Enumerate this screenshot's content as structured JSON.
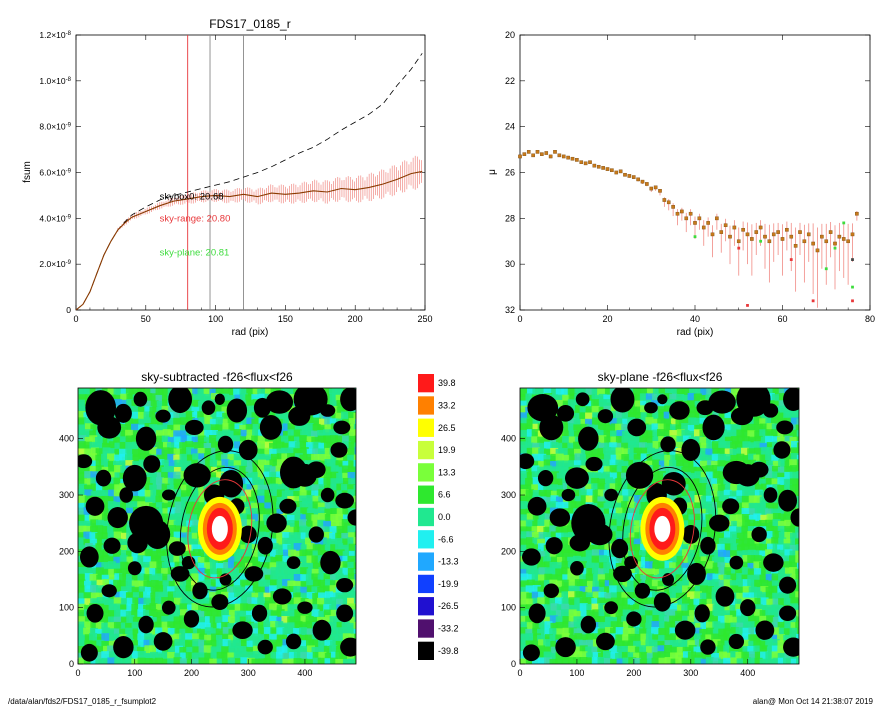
{
  "footer": {
    "path": "/data/alan/fds2/FDS17_0185_r_fsumplot2",
    "stamp": "alan@  Mon Oct 14 21:38:07 2019"
  },
  "colors": {
    "sky0": "#000000",
    "sky_range": "#e8373a",
    "sky_plane": "#3ddc3d",
    "profile_line": "#8a3a00",
    "errorbar": "#f08a84",
    "cb_band": "#f5a09a"
  },
  "chart_data": [
    {
      "id": "fsum",
      "type": "line",
      "title": "FDS17_0185_r",
      "xlabel": "rad (pix)",
      "ylabel": "fsum",
      "xlim": [
        0,
        250
      ],
      "ylim": [
        0,
        1.2e-08
      ],
      "xticks": [
        "0",
        "50",
        "100",
        "150",
        "200",
        "250"
      ],
      "yticks": [
        {
          "v": 0,
          "m": "0",
          "e": ""
        },
        {
          "v": 2e-09,
          "m": "2.0×10",
          "e": "-9"
        },
        {
          "v": 4e-09,
          "m": "4.0×10",
          "e": "-9"
        },
        {
          "v": 6e-09,
          "m": "6.0×10",
          "e": "-9"
        },
        {
          "v": 8e-09,
          "m": "8.0×10",
          "e": "-9"
        },
        {
          "v": 1e-08,
          "m": "1.0×10",
          "e": "-8"
        },
        {
          "v": 1.2e-08,
          "m": "1.2×10",
          "e": "-8"
        }
      ],
      "vlines": [
        {
          "x": 80,
          "color": "#e8373a"
        },
        {
          "x": 96,
          "color": "#888888"
        },
        {
          "x": 120,
          "color": "#888888"
        }
      ],
      "labels": [
        {
          "text": "skybox0: 20.68",
          "color": "#000000",
          "x": 47,
          "y": 4.95e-09
        },
        {
          "text": "sky-range: 20.80",
          "color": "#e8373a",
          "x": 47,
          "y": 4e-09
        },
        {
          "text": "sky-plane: 20.81",
          "color": "#3ddc3d",
          "x": 47,
          "y": 2.5e-09
        }
      ],
      "series": [
        {
          "name": "",
          "style": "dashed",
          "x": [
            0,
            5,
            10,
            15,
            20,
            25,
            30,
            35,
            40,
            50,
            60,
            70,
            80,
            90,
            100,
            110,
            120,
            130,
            140,
            150,
            160,
            170,
            180,
            190,
            200,
            210,
            220,
            230,
            240,
            248
          ],
          "y": [
            0,
            2.5e-10,
            8e-10,
            1.6e-09,
            2.4e-09,
            3e-09,
            3.5e-09,
            3.85e-09,
            4.15e-09,
            4.5e-09,
            4.8e-09,
            5e-09,
            5.15e-09,
            5.3e-09,
            5.45e-09,
            5.6e-09,
            5.8e-09,
            6e-09,
            6.25e-09,
            6.55e-09,
            6.85e-09,
            7.1e-09,
            7.45e-09,
            7.85e-09,
            8.2e-09,
            8.55e-09,
            9e-09,
            9.8e-09,
            1.05e-08,
            1.12e-08
          ]
        },
        {
          "name": "",
          "style": "solid",
          "x": [
            0,
            5,
            10,
            15,
            20,
            25,
            30,
            35,
            40,
            50,
            60,
            70,
            80,
            90,
            100,
            110,
            120,
            130,
            140,
            150,
            160,
            170,
            180,
            190,
            200,
            210,
            220,
            230,
            240,
            248
          ],
          "y": [
            0,
            2.5e-10,
            8e-10,
            1.6e-09,
            2.4e-09,
            3e-09,
            3.5e-09,
            3.8e-09,
            4.05e-09,
            4.3e-09,
            4.55e-09,
            4.75e-09,
            4.85e-09,
            4.95e-09,
            5e-09,
            4.95e-09,
            5.05e-09,
            4.95e-09,
            5.1e-09,
            5.05e-09,
            5.1e-09,
            5.2e-09,
            5.15e-09,
            5.3e-09,
            5.25e-09,
            5.35e-09,
            5.5e-09,
            5.7e-09,
            5.95e-09,
            6.05e-09
          ]
        }
      ],
      "err_band": [
        {
          "x": 40,
          "e": 1e-10
        },
        {
          "x": 60,
          "e": 1.2e-10
        },
        {
          "x": 80,
          "e": 1.8e-10
        },
        {
          "x": 100,
          "e": 2.2e-10
        },
        {
          "x": 120,
          "e": 2.5e-10
        },
        {
          "x": 140,
          "e": 3e-10
        },
        {
          "x": 160,
          "e": 3.5e-10
        },
        {
          "x": 180,
          "e": 4e-10
        },
        {
          "x": 200,
          "e": 4.5e-10
        },
        {
          "x": 220,
          "e": 5e-10
        },
        {
          "x": 240,
          "e": 5.5e-10
        },
        {
          "x": 248,
          "e": 6e-10
        }
      ]
    },
    {
      "id": "mu",
      "type": "scatter",
      "title": "",
      "xlabel": "rad (pix)",
      "ylabel": "μ",
      "xlim": [
        0,
        80
      ],
      "ylim": [
        32,
        20
      ],
      "xticks": [
        "0",
        "20",
        "40",
        "60",
        "80"
      ],
      "yticks": [
        "20",
        "22",
        "24",
        "26",
        "28",
        "30",
        "32"
      ],
      "x": [
        0,
        1,
        2,
        3,
        4,
        5,
        6,
        7,
        8,
        9,
        10,
        11,
        12,
        13,
        14,
        15,
        16,
        17,
        18,
        19,
        20,
        21,
        22,
        23,
        24,
        25,
        26,
        27,
        28,
        29,
        30,
        31,
        32,
        33,
        34,
        35,
        36,
        37,
        38,
        39,
        40,
        41,
        42,
        43,
        44,
        45,
        46,
        47,
        48,
        49,
        50,
        51,
        52,
        53,
        54,
        55,
        56,
        57,
        58,
        59,
        60,
        61,
        62,
        63,
        64,
        65,
        66,
        67,
        68,
        69,
        70,
        71,
        72,
        73,
        74,
        75,
        76,
        77
      ],
      "y": [
        25.3,
        25.2,
        25.1,
        25.25,
        25.1,
        25.2,
        25.15,
        25.3,
        25.1,
        25.25,
        25.3,
        25.35,
        25.4,
        25.45,
        25.55,
        25.6,
        25.55,
        25.7,
        25.75,
        25.8,
        25.85,
        25.9,
        26.0,
        25.95,
        26.1,
        26.15,
        26.2,
        26.3,
        26.4,
        26.5,
        26.7,
        26.65,
        26.8,
        27.2,
        27.3,
        27.5,
        27.8,
        27.7,
        28.0,
        27.8,
        28.2,
        28.0,
        28.4,
        28.2,
        28.7,
        28.0,
        28.6,
        28.3,
        28.8,
        28.4,
        29.0,
        28.5,
        28.7,
        28.9,
        28.6,
        28.4,
        28.8,
        29.0,
        28.7,
        28.6,
        28.9,
        28.5,
        28.8,
        29.2,
        28.6,
        29.0,
        28.7,
        29.1,
        29.4,
        28.8,
        29.0,
        28.6,
        29.1,
        28.8,
        28.9,
        29.0,
        28.7,
        27.8
      ],
      "err": [
        0.05,
        0.05,
        0.05,
        0.05,
        0.05,
        0.05,
        0.05,
        0.05,
        0.05,
        0.05,
        0.05,
        0.05,
        0.05,
        0.05,
        0.05,
        0.05,
        0.05,
        0.05,
        0.05,
        0.06,
        0.06,
        0.06,
        0.06,
        0.07,
        0.07,
        0.08,
        0.08,
        0.09,
        0.1,
        0.1,
        0.15,
        0.15,
        0.2,
        0.3,
        0.35,
        0.4,
        0.5,
        0.4,
        0.6,
        0.5,
        0.7,
        0.5,
        0.8,
        0.6,
        1.0,
        0.5,
        0.9,
        0.7,
        1.2,
        0.8,
        1.5,
        0.9,
        1.3,
        1.6,
        1.0,
        0.8,
        1.4,
        1.8,
        1.2,
        1.0,
        1.6,
        0.9,
        1.5,
        2.0,
        1.0,
        1.8,
        1.2,
        2.2,
        2.5,
        1.4,
        1.9,
        1.1,
        2.0,
        1.5,
        1.7,
        1.9,
        1.2,
        0.3
      ],
      "outliers": [
        {
          "x": 40,
          "y": 28.8,
          "c": "#3ddc3d"
        },
        {
          "x": 50,
          "y": 29.3,
          "c": "#e8373a"
        },
        {
          "x": 52,
          "y": 31.8,
          "c": "#e8373a"
        },
        {
          "x": 55,
          "y": 29.0,
          "c": "#3ddc3d"
        },
        {
          "x": 62,
          "y": 29.8,
          "c": "#e8373a"
        },
        {
          "x": 67,
          "y": 31.6,
          "c": "#e8373a"
        },
        {
          "x": 70,
          "y": 30.2,
          "c": "#3ddc3d"
        },
        {
          "x": 72,
          "y": 29.3,
          "c": "#3ddc3d"
        },
        {
          "x": 74,
          "y": 28.2,
          "c": "#3ddc3d"
        },
        {
          "x": 76,
          "y": 29.8,
          "c": "#444444"
        },
        {
          "x": 76,
          "y": 31.0,
          "c": "#3ddc3d"
        },
        {
          "x": 76,
          "y": 31.6,
          "c": "#e8373a"
        }
      ]
    },
    {
      "id": "img1",
      "type": "heatmap",
      "title": "sky-subtracted -f26<flux<f26",
      "xlim": [
        0,
        490
      ],
      "ylim": [
        0,
        490
      ],
      "xticks": [
        "0",
        "100",
        "200",
        "300",
        "400"
      ],
      "yticks": [
        "0",
        "100",
        "200",
        "300",
        "400"
      ],
      "galaxy_center": [
        250,
        240
      ],
      "ellipses": [
        {
          "rx": 68,
          "ry": 110,
          "color": "#000000"
        },
        {
          "rx": 92,
          "ry": 140,
          "color": "#000000"
        },
        {
          "rx": 55,
          "ry": 88,
          "color": "#e8373a"
        }
      ]
    },
    {
      "id": "img2",
      "type": "heatmap",
      "title": "sky-plane -f26<flux<f26",
      "xlim": [
        0,
        490
      ],
      "ylim": [
        0,
        490
      ],
      "xticks": [
        "0",
        "100",
        "200",
        "300",
        "400"
      ],
      "yticks": [
        "0",
        "100",
        "200",
        "300",
        "400"
      ],
      "galaxy_center": [
        250,
        240
      ],
      "ellipses": [
        {
          "rx": 68,
          "ry": 110,
          "color": "#000000"
        },
        {
          "rx": 92,
          "ry": 140,
          "color": "#000000"
        },
        {
          "rx": 55,
          "ry": 88,
          "color": "#e8373a"
        }
      ]
    },
    {
      "id": "colorbar",
      "type": "table",
      "levels": [
        "39.8",
        "33.2",
        "26.5",
        "19.9",
        "13.3",
        "6.6",
        "0.0",
        "-6.6",
        "-13.3",
        "-19.9",
        "-26.5",
        "-33.2",
        "-39.8"
      ],
      "colors": [
        "#ff1a1a",
        "#ff8000",
        "#ffff00",
        "#c8ff3a",
        "#7aff3a",
        "#2ee82e",
        "#20e890",
        "#20f0f0",
        "#20a8ff",
        "#1040ff",
        "#2010d0",
        "#50106e",
        "#000000"
      ]
    }
  ]
}
